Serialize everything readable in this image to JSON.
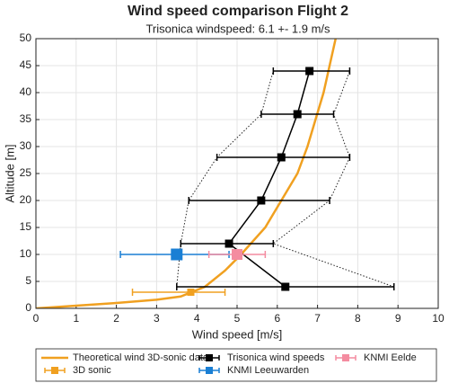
{
  "chart_data": {
    "type": "errorbar",
    "title": "Wind speed comparison Flight 2",
    "subtitle": "Trisonica windspeed: 6.1 +- 1.9 m/s",
    "x_label": "Wind speed [m/s]",
    "y_label": "Altitude [m]",
    "xlim": [
      0,
      10
    ],
    "xticks": [
      0,
      1,
      2,
      3,
      4,
      5,
      6,
      7,
      8,
      9,
      10
    ],
    "ylim": [
      0,
      50
    ],
    "yticks": [
      0,
      5,
      10,
      15,
      20,
      25,
      30,
      35,
      40,
      45,
      50
    ],
    "grid": true,
    "legend": "bottom",
    "series": [
      {
        "name": "Theoretical wind 3D-sonic data",
        "kind": "line",
        "color": "#f0a020",
        "x": [
          0,
          1,
          2,
          3,
          3.6,
          4.2,
          4.7,
          5.1,
          5.7,
          6.1,
          6.5,
          6.75,
          6.95,
          7.15,
          7.3,
          7.45
        ],
        "y": [
          0,
          0.5,
          1,
          1.6,
          2.2,
          4,
          7,
          10,
          15,
          20,
          25,
          30,
          35,
          40,
          45,
          50
        ]
      },
      {
        "name": "3D sonic",
        "kind": "errorbar",
        "color": "#f0a020",
        "marker_size": 8,
        "x": [
          3.85
        ],
        "y": [
          3
        ],
        "xlower": [
          2.4
        ],
        "xupper": [
          4.7
        ]
      },
      {
        "name": "Trisonica wind speeds",
        "kind": "errorbar",
        "color": "#000000",
        "marker_size": 9,
        "connect": true,
        "bounds_style": "dotted",
        "x": [
          6.2,
          4.8,
          5.6,
          6.1,
          6.5,
          6.8
        ],
        "y": [
          4,
          12,
          20,
          28,
          36,
          44
        ],
        "xlower": [
          3.5,
          3.6,
          3.8,
          4.5,
          5.6,
          5.9
        ],
        "xupper": [
          8.9,
          5.9,
          7.3,
          7.8,
          7.4,
          7.8
        ]
      },
      {
        "name": "KNMI Leeuwarden",
        "kind": "errorbar",
        "color": "#1a7fd4",
        "marker_size": 13,
        "x": [
          3.5
        ],
        "y": [
          10
        ],
        "xlower": [
          2.1
        ],
        "xupper": [
          4.8
        ]
      },
      {
        "name": "KNMI Eelde",
        "kind": "errorbar",
        "color": "#f48ca0",
        "marker_size": 12,
        "x": [
          5.0
        ],
        "y": [
          10
        ],
        "xlower": [
          4.3
        ],
        "xupper": [
          5.7
        ]
      }
    ]
  }
}
